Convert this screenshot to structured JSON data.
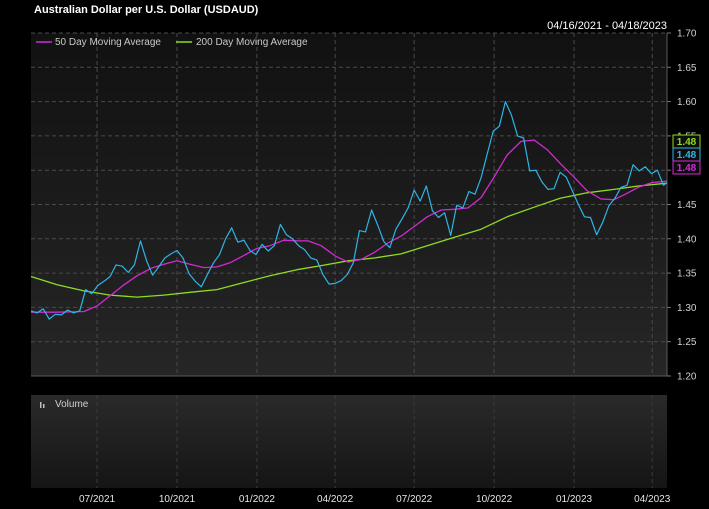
{
  "title": "Australian Dollar per U.S. Dollar (USDAUD)",
  "date_range": "04/16/2021 - 04/18/2023",
  "volume_label": "Volume",
  "colors": {
    "price": "#2fb4e6",
    "ma50": "#d22ad2",
    "ma200": "#8fdc1e",
    "background": "#000000",
    "grid": "#4a4a4a",
    "tag_price_border": "#2fb4e6",
    "tag_ma50_border": "#d22ad2",
    "tag_ma200_border": "#8fdc1e"
  },
  "chart_data": {
    "type": "line",
    "title": "Australian Dollar per U.S. Dollar (USDAUD)",
    "x_axis": {
      "type": "date",
      "start": "2021-04-16",
      "end": "2023-04-18",
      "tick_labels": [
        "07/2021",
        "10/2021",
        "01/2022",
        "04/2022",
        "07/2022",
        "10/2022",
        "01/2023",
        "04/2023"
      ]
    },
    "y_axis": {
      "position": "right",
      "ylim": [
        1.2,
        1.7
      ],
      "ticks": [
        1.2,
        1.25,
        1.3,
        1.35,
        1.4,
        1.45,
        1.5,
        1.55,
        1.6,
        1.65,
        1.7
      ],
      "tick_labels": [
        "1.20",
        "1.25",
        "1.30",
        "1.35",
        "1.40",
        "1.45",
        "1.50",
        "1.55",
        "1.60",
        "1.65",
        "1.70"
      ]
    },
    "grid": true,
    "legend": {
      "placement": "top-left",
      "entries": [
        "50 Day Moving Average",
        "200 Day Moving Average"
      ]
    },
    "last_value_tags": {
      "price": "1.48",
      "ma200": "1.48",
      "ma50": "1.48"
    },
    "series": [
      {
        "key": "price",
        "points": [
          [
            "2021-04-16",
            1.295
          ],
          [
            "2021-04-23",
            1.292
          ],
          [
            "2021-04-30",
            1.298
          ],
          [
            "2021-05-07",
            1.283
          ],
          [
            "2021-05-14",
            1.29
          ],
          [
            "2021-05-21",
            1.289
          ],
          [
            "2021-05-28",
            1.296
          ],
          [
            "2021-06-04",
            1.292
          ],
          [
            "2021-06-11",
            1.295
          ],
          [
            "2021-06-18",
            1.326
          ],
          [
            "2021-06-25",
            1.32
          ],
          [
            "2021-07-02",
            1.332
          ],
          [
            "2021-07-09",
            1.338
          ],
          [
            "2021-07-16",
            1.345
          ],
          [
            "2021-07-23",
            1.362
          ],
          [
            "2021-07-30",
            1.36
          ],
          [
            "2021-08-06",
            1.351
          ],
          [
            "2021-08-13",
            1.362
          ],
          [
            "2021-08-20",
            1.397
          ],
          [
            "2021-08-27",
            1.368
          ],
          [
            "2021-09-03",
            1.347
          ],
          [
            "2021-09-10",
            1.359
          ],
          [
            "2021-09-17",
            1.372
          ],
          [
            "2021-09-24",
            1.378
          ],
          [
            "2021-10-01",
            1.383
          ],
          [
            "2021-10-08",
            1.372
          ],
          [
            "2021-10-15",
            1.349
          ],
          [
            "2021-10-22",
            1.338
          ],
          [
            "2021-10-29",
            1.33
          ],
          [
            "2021-11-05",
            1.348
          ],
          [
            "2021-11-12",
            1.365
          ],
          [
            "2021-11-19",
            1.377
          ],
          [
            "2021-11-26",
            1.4
          ],
          [
            "2021-12-03",
            1.416
          ],
          [
            "2021-12-10",
            1.395
          ],
          [
            "2021-12-17",
            1.398
          ],
          [
            "2021-12-24",
            1.383
          ],
          [
            "2021-12-31",
            1.377
          ],
          [
            "2022-01-07",
            1.392
          ],
          [
            "2022-01-14",
            1.382
          ],
          [
            "2022-01-21",
            1.39
          ],
          [
            "2022-01-28",
            1.421
          ],
          [
            "2022-02-04",
            1.406
          ],
          [
            "2022-02-11",
            1.4
          ],
          [
            "2022-02-18",
            1.39
          ],
          [
            "2022-02-25",
            1.384
          ],
          [
            "2022-03-04",
            1.372
          ],
          [
            "2022-03-11",
            1.369
          ],
          [
            "2022-03-18",
            1.348
          ],
          [
            "2022-03-25",
            1.334
          ],
          [
            "2022-04-01",
            1.335
          ],
          [
            "2022-04-08",
            1.339
          ],
          [
            "2022-04-15",
            1.348
          ],
          [
            "2022-04-22",
            1.365
          ],
          [
            "2022-04-29",
            1.412
          ],
          [
            "2022-05-06",
            1.41
          ],
          [
            "2022-05-13",
            1.442
          ],
          [
            "2022-05-20",
            1.42
          ],
          [
            "2022-05-27",
            1.396
          ],
          [
            "2022-06-03",
            1.387
          ],
          [
            "2022-06-10",
            1.414
          ],
          [
            "2022-06-17",
            1.429
          ],
          [
            "2022-06-24",
            1.445
          ],
          [
            "2022-07-01",
            1.471
          ],
          [
            "2022-07-08",
            1.455
          ],
          [
            "2022-07-15",
            1.477
          ],
          [
            "2022-07-22",
            1.441
          ],
          [
            "2022-07-29",
            1.431
          ],
          [
            "2022-08-05",
            1.438
          ],
          [
            "2022-08-12",
            1.405
          ],
          [
            "2022-08-19",
            1.449
          ],
          [
            "2022-08-26",
            1.445
          ],
          [
            "2022-09-02",
            1.469
          ],
          [
            "2022-09-09",
            1.465
          ],
          [
            "2022-09-16",
            1.489
          ],
          [
            "2022-09-23",
            1.523
          ],
          [
            "2022-09-30",
            1.557
          ],
          [
            "2022-10-07",
            1.564
          ],
          [
            "2022-10-14",
            1.6
          ],
          [
            "2022-10-21",
            1.58
          ],
          [
            "2022-10-28",
            1.55
          ],
          [
            "2022-11-04",
            1.547
          ],
          [
            "2022-11-11",
            1.499
          ],
          [
            "2022-11-18",
            1.5
          ],
          [
            "2022-11-25",
            1.483
          ],
          [
            "2022-12-02",
            1.472
          ],
          [
            "2022-12-09",
            1.473
          ],
          [
            "2022-12-16",
            1.497
          ],
          [
            "2022-12-23",
            1.49
          ],
          [
            "2022-12-30",
            1.47
          ],
          [
            "2023-01-06",
            1.45
          ],
          [
            "2023-01-13",
            1.432
          ],
          [
            "2023-01-20",
            1.431
          ],
          [
            "2023-01-27",
            1.406
          ],
          [
            "2023-02-03",
            1.424
          ],
          [
            "2023-02-10",
            1.448
          ],
          [
            "2023-02-17",
            1.459
          ],
          [
            "2023-02-24",
            1.475
          ],
          [
            "2023-03-03",
            1.478
          ],
          [
            "2023-03-10",
            1.508
          ],
          [
            "2023-03-17",
            1.499
          ],
          [
            "2023-03-24",
            1.505
          ],
          [
            "2023-03-31",
            1.495
          ],
          [
            "2023-04-07",
            1.5
          ],
          [
            "2023-04-14",
            1.478
          ],
          [
            "2023-04-18",
            1.482
          ]
        ]
      },
      {
        "key": "ma50",
        "name": "50 Day Moving Average",
        "points": [
          [
            "2021-04-16",
            1.293
          ],
          [
            "2021-05-16",
            1.293
          ],
          [
            "2021-06-16",
            1.294
          ],
          [
            "2021-07-01",
            1.302
          ],
          [
            "2021-07-16",
            1.317
          ],
          [
            "2021-08-01",
            1.333
          ],
          [
            "2021-08-16",
            1.346
          ],
          [
            "2021-09-01",
            1.357
          ],
          [
            "2021-09-16",
            1.363
          ],
          [
            "2021-10-01",
            1.368
          ],
          [
            "2021-10-16",
            1.363
          ],
          [
            "2021-11-01",
            1.358
          ],
          [
            "2021-11-16",
            1.359
          ],
          [
            "2021-12-01",
            1.365
          ],
          [
            "2021-12-16",
            1.375
          ],
          [
            "2022-01-01",
            1.386
          ],
          [
            "2022-01-16",
            1.39
          ],
          [
            "2022-02-01",
            1.398
          ],
          [
            "2022-02-16",
            1.397
          ],
          [
            "2022-03-01",
            1.397
          ],
          [
            "2022-03-16",
            1.39
          ],
          [
            "2022-04-01",
            1.375
          ],
          [
            "2022-04-16",
            1.366
          ],
          [
            "2022-05-01",
            1.37
          ],
          [
            "2022-05-16",
            1.38
          ],
          [
            "2022-06-01",
            1.394
          ],
          [
            "2022-06-16",
            1.404
          ],
          [
            "2022-07-01",
            1.418
          ],
          [
            "2022-07-16",
            1.432
          ],
          [
            "2022-08-01",
            1.442
          ],
          [
            "2022-08-16",
            1.443
          ],
          [
            "2022-09-01",
            1.445
          ],
          [
            "2022-09-16",
            1.46
          ],
          [
            "2022-10-01",
            1.49
          ],
          [
            "2022-10-16",
            1.522
          ],
          [
            "2022-11-01",
            1.542
          ],
          [
            "2022-11-16",
            1.544
          ],
          [
            "2022-12-01",
            1.53
          ],
          [
            "2022-12-16",
            1.51
          ],
          [
            "2023-01-01",
            1.49
          ],
          [
            "2023-01-16",
            1.47
          ],
          [
            "2023-02-01",
            1.458
          ],
          [
            "2023-02-16",
            1.457
          ],
          [
            "2023-03-01",
            1.465
          ],
          [
            "2023-03-16",
            1.475
          ],
          [
            "2023-04-01",
            1.482
          ],
          [
            "2023-04-18",
            1.484
          ]
        ]
      },
      {
        "key": "ma200",
        "name": "200 Day Moving Average",
        "points": [
          [
            "2021-04-16",
            1.345
          ],
          [
            "2021-05-16",
            1.333
          ],
          [
            "2021-06-16",
            1.324
          ],
          [
            "2021-07-16",
            1.318
          ],
          [
            "2021-08-16",
            1.315
          ],
          [
            "2021-09-16",
            1.318
          ],
          [
            "2021-10-16",
            1.322
          ],
          [
            "2021-11-16",
            1.326
          ],
          [
            "2021-12-16",
            1.336
          ],
          [
            "2022-01-16",
            1.346
          ],
          [
            "2022-02-16",
            1.355
          ],
          [
            "2022-03-16",
            1.361
          ],
          [
            "2022-04-16",
            1.368
          ],
          [
            "2022-05-16",
            1.372
          ],
          [
            "2022-06-16",
            1.378
          ],
          [
            "2022-07-16",
            1.39
          ],
          [
            "2022-08-16",
            1.402
          ],
          [
            "2022-09-16",
            1.414
          ],
          [
            "2022-10-16",
            1.432
          ],
          [
            "2022-11-16",
            1.446
          ],
          [
            "2022-12-16",
            1.459
          ],
          [
            "2023-01-16",
            1.467
          ],
          [
            "2023-02-16",
            1.472
          ],
          [
            "2023-03-16",
            1.477
          ],
          [
            "2023-04-18",
            1.481
          ]
        ]
      }
    ]
  }
}
